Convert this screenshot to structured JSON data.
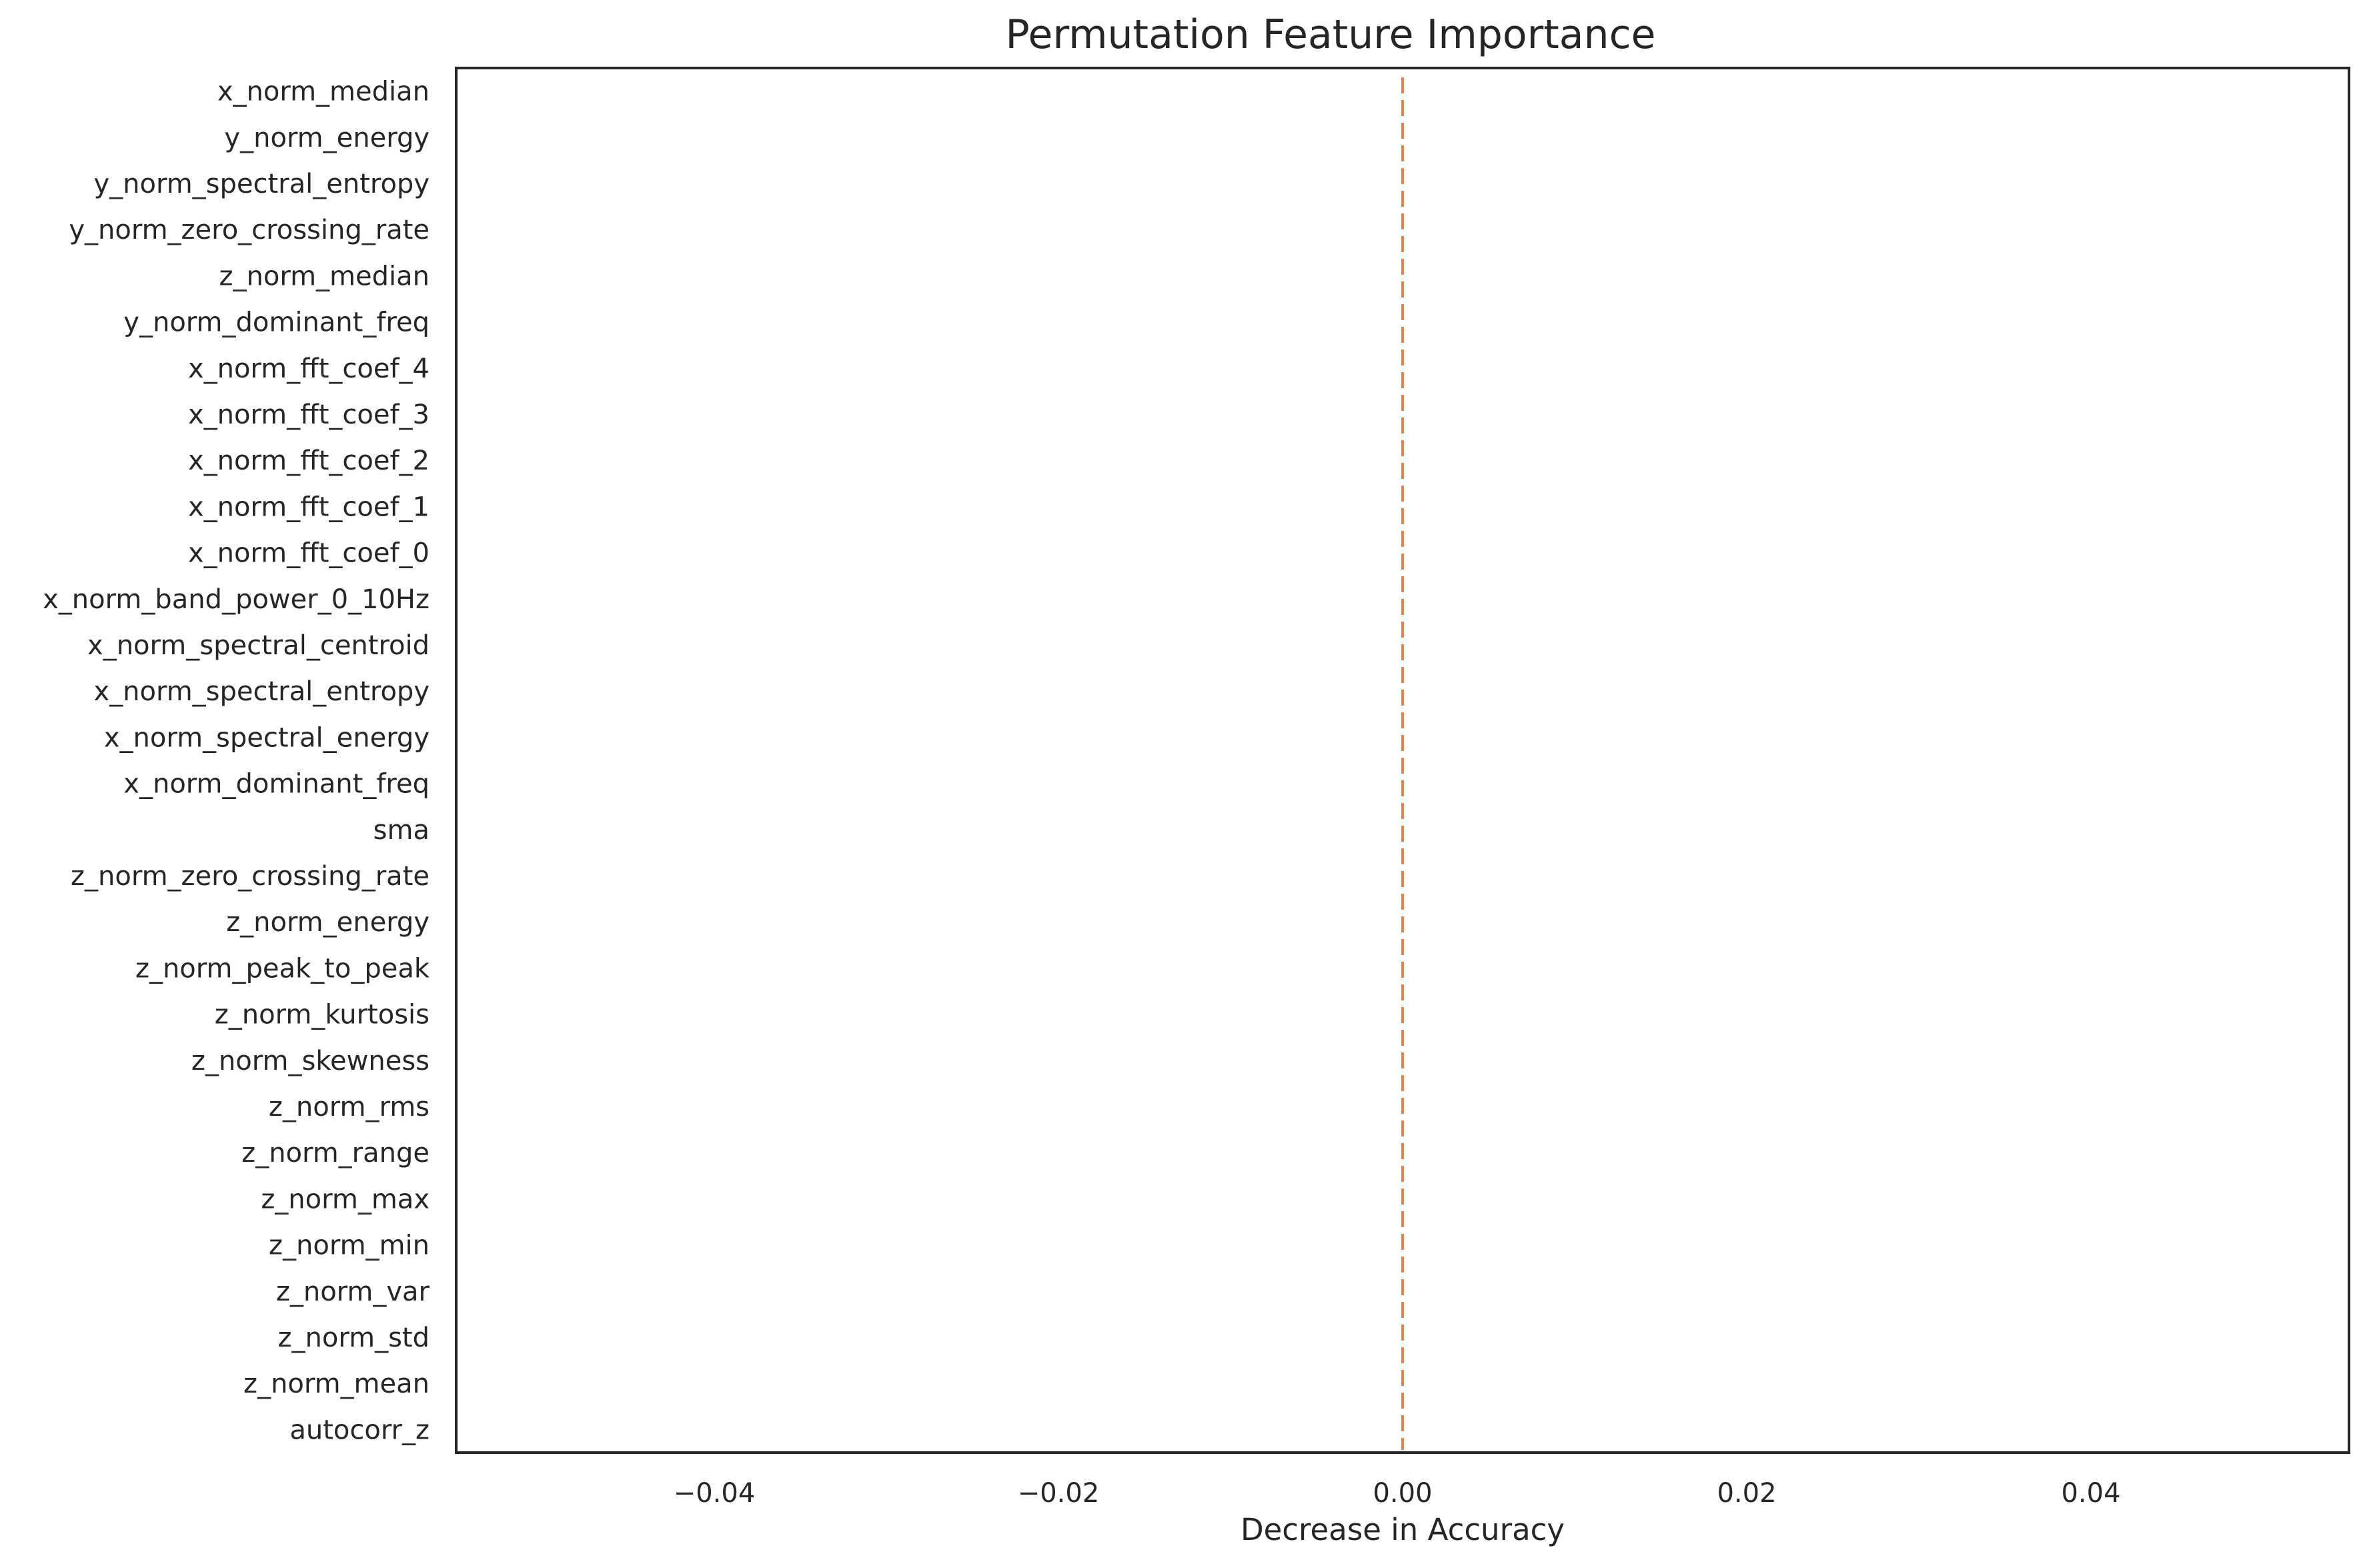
{
  "chart_data": {
    "type": "bar",
    "orientation": "horizontal",
    "title": "Permutation Feature Importance",
    "xlabel": "Decrease in Accuracy",
    "ylabel": "",
    "xlim": [
      -0.055,
      0.055
    ],
    "xticks": [
      -0.04,
      -0.02,
      0.0,
      0.02,
      0.04
    ],
    "xtick_labels": [
      "−0.04",
      "−0.02",
      "0.00",
      "0.02",
      "0.04"
    ],
    "grid": false,
    "categories": [
      "x_norm_median",
      "y_norm_energy",
      "y_norm_spectral_entropy",
      "y_norm_zero_crossing_rate",
      "z_norm_median",
      "y_norm_dominant_freq",
      "x_norm_fft_coef_4",
      "x_norm_fft_coef_3",
      "x_norm_fft_coef_2",
      "x_norm_fft_coef_1",
      "x_norm_fft_coef_0",
      "x_norm_band_power_0_10Hz",
      "x_norm_spectral_centroid",
      "x_norm_spectral_entropy",
      "x_norm_spectral_energy",
      "x_norm_dominant_freq",
      "sma",
      "z_norm_zero_crossing_rate",
      "z_norm_energy",
      "z_norm_peak_to_peak",
      "z_norm_kurtosis",
      "z_norm_skewness",
      "z_norm_rms",
      "z_norm_range",
      "z_norm_max",
      "z_norm_min",
      "z_norm_var",
      "z_norm_std",
      "z_norm_mean",
      "autocorr_z"
    ],
    "values": [
      0,
      0,
      0,
      0,
      0,
      0,
      0,
      0,
      0,
      0,
      0,
      0,
      0,
      0,
      0,
      0,
      0,
      0,
      0,
      0,
      0,
      0,
      0,
      0,
      0,
      0,
      0,
      0,
      0,
      0
    ],
    "colors": {
      "bar": "#4c72b0",
      "reference_line": "#dd8452",
      "frame": "#262626",
      "text": "#262626"
    },
    "reference_line": {
      "x": 0,
      "style": "dashed"
    }
  }
}
